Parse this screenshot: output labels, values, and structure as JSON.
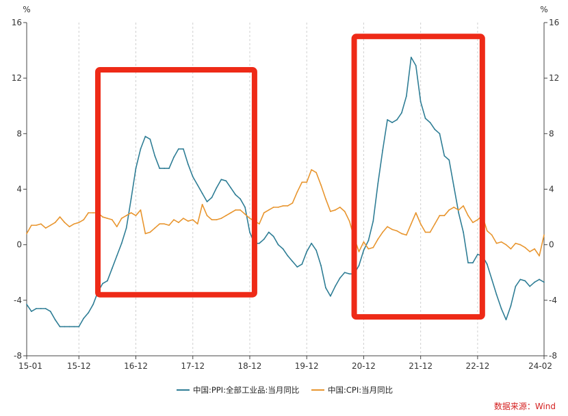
{
  "chart_data": {
    "type": "line",
    "title": "",
    "unit_left": "%",
    "unit_right": "%",
    "ylim": [
      -8,
      16
    ],
    "y_ticks": [
      -8,
      -4,
      0,
      4,
      8,
      12,
      16
    ],
    "x_tick_labels": [
      "15-01",
      "15-12",
      "16-12",
      "17-12",
      "18-12",
      "19-12",
      "20-12",
      "21-12",
      "22-12",
      "24-02"
    ],
    "x_tick_months": [
      "2015-01",
      "2015-12",
      "2016-12",
      "2017-12",
      "2018-12",
      "2019-12",
      "2020-12",
      "2021-12",
      "2022-12",
      "2024-02"
    ],
    "x_range": [
      "2015-01",
      "2024-02"
    ],
    "grid": "vertical-dashed",
    "legend_position": "bottom-center",
    "source_note": "数据来源：Wind",
    "highlight_boxes": [
      {
        "x_from": "2016-04",
        "x_to": "2019-01",
        "y_from": -3.6,
        "y_to": 12.6
      },
      {
        "x_from": "2020-10",
        "x_to": "2023-01",
        "y_from": -5.2,
        "y_to": 15.0
      }
    ],
    "series": [
      {
        "name": "中国:PPI:全部工业品:当月同比",
        "color": "#2e7d95",
        "points": [
          [
            "2015-01",
            -4.3
          ],
          [
            "2015-02",
            -4.8
          ],
          [
            "2015-03",
            -4.6
          ],
          [
            "2015-04",
            -4.6
          ],
          [
            "2015-05",
            -4.6
          ],
          [
            "2015-06",
            -4.8
          ],
          [
            "2015-07",
            -5.4
          ],
          [
            "2015-08",
            -5.9
          ],
          [
            "2015-09",
            -5.9
          ],
          [
            "2015-10",
            -5.9
          ],
          [
            "2015-11",
            -5.9
          ],
          [
            "2015-12",
            -5.9
          ],
          [
            "2016-01",
            -5.3
          ],
          [
            "2016-02",
            -4.9
          ],
          [
            "2016-03",
            -4.3
          ],
          [
            "2016-04",
            -3.4
          ],
          [
            "2016-05",
            -2.8
          ],
          [
            "2016-06",
            -2.6
          ],
          [
            "2016-07",
            -1.7
          ],
          [
            "2016-08",
            -0.8
          ],
          [
            "2016-09",
            0.1
          ],
          [
            "2016-10",
            1.2
          ],
          [
            "2016-11",
            3.3
          ],
          [
            "2016-12",
            5.5
          ],
          [
            "2017-01",
            6.9
          ],
          [
            "2017-02",
            7.8
          ],
          [
            "2017-03",
            7.6
          ],
          [
            "2017-04",
            6.4
          ],
          [
            "2017-05",
            5.5
          ],
          [
            "2017-06",
            5.5
          ],
          [
            "2017-07",
            5.5
          ],
          [
            "2017-08",
            6.3
          ],
          [
            "2017-09",
            6.9
          ],
          [
            "2017-10",
            6.9
          ],
          [
            "2017-11",
            5.8
          ],
          [
            "2017-12",
            4.9
          ],
          [
            "2018-01",
            4.3
          ],
          [
            "2018-02",
            3.7
          ],
          [
            "2018-03",
            3.1
          ],
          [
            "2018-04",
            3.4
          ],
          [
            "2018-05",
            4.1
          ],
          [
            "2018-06",
            4.7
          ],
          [
            "2018-07",
            4.6
          ],
          [
            "2018-08",
            4.1
          ],
          [
            "2018-09",
            3.6
          ],
          [
            "2018-10",
            3.3
          ],
          [
            "2018-11",
            2.7
          ],
          [
            "2018-12",
            0.9
          ],
          [
            "2019-01",
            0.1
          ],
          [
            "2019-02",
            0.1
          ],
          [
            "2019-03",
            0.4
          ],
          [
            "2019-04",
            0.9
          ],
          [
            "2019-05",
            0.6
          ],
          [
            "2019-06",
            0.0
          ],
          [
            "2019-07",
            -0.3
          ],
          [
            "2019-08",
            -0.8
          ],
          [
            "2019-09",
            -1.2
          ],
          [
            "2019-10",
            -1.6
          ],
          [
            "2019-11",
            -1.4
          ],
          [
            "2019-12",
            -0.5
          ],
          [
            "2020-01",
            0.1
          ],
          [
            "2020-02",
            -0.4
          ],
          [
            "2020-03",
            -1.5
          ],
          [
            "2020-04",
            -3.1
          ],
          [
            "2020-05",
            -3.7
          ],
          [
            "2020-06",
            -3.0
          ],
          [
            "2020-07",
            -2.4
          ],
          [
            "2020-08",
            -2.0
          ],
          [
            "2020-09",
            -2.1
          ],
          [
            "2020-10",
            -2.1
          ],
          [
            "2020-11",
            -1.5
          ],
          [
            "2020-12",
            -0.4
          ],
          [
            "2021-01",
            0.3
          ],
          [
            "2021-02",
            1.7
          ],
          [
            "2021-03",
            4.4
          ],
          [
            "2021-04",
            6.8
          ],
          [
            "2021-05",
            9.0
          ],
          [
            "2021-06",
            8.8
          ],
          [
            "2021-07",
            9.0
          ],
          [
            "2021-08",
            9.5
          ],
          [
            "2021-09",
            10.7
          ],
          [
            "2021-10",
            13.5
          ],
          [
            "2021-11",
            12.9
          ],
          [
            "2021-12",
            10.3
          ],
          [
            "2022-01",
            9.1
          ],
          [
            "2022-02",
            8.8
          ],
          [
            "2022-03",
            8.3
          ],
          [
            "2022-04",
            8.0
          ],
          [
            "2022-05",
            6.4
          ],
          [
            "2022-06",
            6.1
          ],
          [
            "2022-07",
            4.2
          ],
          [
            "2022-08",
            2.3
          ],
          [
            "2022-09",
            0.9
          ],
          [
            "2022-10",
            -1.3
          ],
          [
            "2022-11",
            -1.3
          ],
          [
            "2022-12",
            -0.7
          ],
          [
            "2023-01",
            -0.8
          ],
          [
            "2023-02",
            -1.4
          ],
          [
            "2023-03",
            -2.5
          ],
          [
            "2023-04",
            -3.6
          ],
          [
            "2023-05",
            -4.6
          ],
          [
            "2023-06",
            -5.4
          ],
          [
            "2023-07",
            -4.4
          ],
          [
            "2023-08",
            -3.0
          ],
          [
            "2023-09",
            -2.5
          ],
          [
            "2023-10",
            -2.6
          ],
          [
            "2023-11",
            -3.0
          ],
          [
            "2023-12",
            -2.7
          ],
          [
            "2024-01",
            -2.5
          ],
          [
            "2024-02",
            -2.7
          ]
        ]
      },
      {
        "name": "中国:CPI:当月同比",
        "color": "#e8952e",
        "points": [
          [
            "2015-01",
            0.8
          ],
          [
            "2015-02",
            1.4
          ],
          [
            "2015-03",
            1.4
          ],
          [
            "2015-04",
            1.5
          ],
          [
            "2015-05",
            1.2
          ],
          [
            "2015-06",
            1.4
          ],
          [
            "2015-07",
            1.6
          ],
          [
            "2015-08",
            2.0
          ],
          [
            "2015-09",
            1.6
          ],
          [
            "2015-10",
            1.3
          ],
          [
            "2015-11",
            1.5
          ],
          [
            "2015-12",
            1.6
          ],
          [
            "2016-01",
            1.8
          ],
          [
            "2016-02",
            2.3
          ],
          [
            "2016-03",
            2.3
          ],
          [
            "2016-04",
            2.3
          ],
          [
            "2016-05",
            2.0
          ],
          [
            "2016-06",
            1.9
          ],
          [
            "2016-07",
            1.8
          ],
          [
            "2016-08",
            1.3
          ],
          [
            "2016-09",
            1.9
          ],
          [
            "2016-10",
            2.1
          ],
          [
            "2016-11",
            2.3
          ],
          [
            "2016-12",
            2.1
          ],
          [
            "2017-01",
            2.5
          ],
          [
            "2017-02",
            0.8
          ],
          [
            "2017-03",
            0.9
          ],
          [
            "2017-04",
            1.2
          ],
          [
            "2017-05",
            1.5
          ],
          [
            "2017-06",
            1.5
          ],
          [
            "2017-07",
            1.4
          ],
          [
            "2017-08",
            1.8
          ],
          [
            "2017-09",
            1.6
          ],
          [
            "2017-10",
            1.9
          ],
          [
            "2017-11",
            1.7
          ],
          [
            "2017-12",
            1.8
          ],
          [
            "2018-01",
            1.5
          ],
          [
            "2018-02",
            2.9
          ],
          [
            "2018-03",
            2.1
          ],
          [
            "2018-04",
            1.8
          ],
          [
            "2018-05",
            1.8
          ],
          [
            "2018-06",
            1.9
          ],
          [
            "2018-07",
            2.1
          ],
          [
            "2018-08",
            2.3
          ],
          [
            "2018-09",
            2.5
          ],
          [
            "2018-10",
            2.5
          ],
          [
            "2018-11",
            2.2
          ],
          [
            "2018-12",
            1.9
          ],
          [
            "2019-01",
            1.7
          ],
          [
            "2019-02",
            1.5
          ],
          [
            "2019-03",
            2.3
          ],
          [
            "2019-04",
            2.5
          ],
          [
            "2019-05",
            2.7
          ],
          [
            "2019-06",
            2.7
          ],
          [
            "2019-07",
            2.8
          ],
          [
            "2019-08",
            2.8
          ],
          [
            "2019-09",
            3.0
          ],
          [
            "2019-10",
            3.8
          ],
          [
            "2019-11",
            4.5
          ],
          [
            "2019-12",
            4.5
          ],
          [
            "2020-01",
            5.4
          ],
          [
            "2020-02",
            5.2
          ],
          [
            "2020-03",
            4.3
          ],
          [
            "2020-04",
            3.3
          ],
          [
            "2020-05",
            2.4
          ],
          [
            "2020-06",
            2.5
          ],
          [
            "2020-07",
            2.7
          ],
          [
            "2020-08",
            2.4
          ],
          [
            "2020-09",
            1.7
          ],
          [
            "2020-10",
            0.5
          ],
          [
            "2020-11",
            -0.5
          ],
          [
            "2020-12",
            0.2
          ],
          [
            "2021-01",
            -0.3
          ],
          [
            "2021-02",
            -0.2
          ],
          [
            "2021-03",
            0.4
          ],
          [
            "2021-04",
            0.9
          ],
          [
            "2021-05",
            1.3
          ],
          [
            "2021-06",
            1.1
          ],
          [
            "2021-07",
            1.0
          ],
          [
            "2021-08",
            0.8
          ],
          [
            "2021-09",
            0.7
          ],
          [
            "2021-10",
            1.5
          ],
          [
            "2021-11",
            2.3
          ],
          [
            "2021-12",
            1.5
          ],
          [
            "2022-01",
            0.9
          ],
          [
            "2022-02",
            0.9
          ],
          [
            "2022-03",
            1.5
          ],
          [
            "2022-04",
            2.1
          ],
          [
            "2022-05",
            2.1
          ],
          [
            "2022-06",
            2.5
          ],
          [
            "2022-07",
            2.7
          ],
          [
            "2022-08",
            2.5
          ],
          [
            "2022-09",
            2.8
          ],
          [
            "2022-10",
            2.1
          ],
          [
            "2022-11",
            1.6
          ],
          [
            "2022-12",
            1.8
          ],
          [
            "2023-01",
            2.1
          ],
          [
            "2023-02",
            1.0
          ],
          [
            "2023-03",
            0.7
          ],
          [
            "2023-04",
            0.1
          ],
          [
            "2023-05",
            0.2
          ],
          [
            "2023-06",
            0.0
          ],
          [
            "2023-07",
            -0.3
          ],
          [
            "2023-08",
            0.1
          ],
          [
            "2023-09",
            0.0
          ],
          [
            "2023-10",
            -0.2
          ],
          [
            "2023-11",
            -0.5
          ],
          [
            "2023-12",
            -0.3
          ],
          [
            "2024-01",
            -0.8
          ],
          [
            "2024-02",
            0.7
          ]
        ]
      }
    ]
  }
}
